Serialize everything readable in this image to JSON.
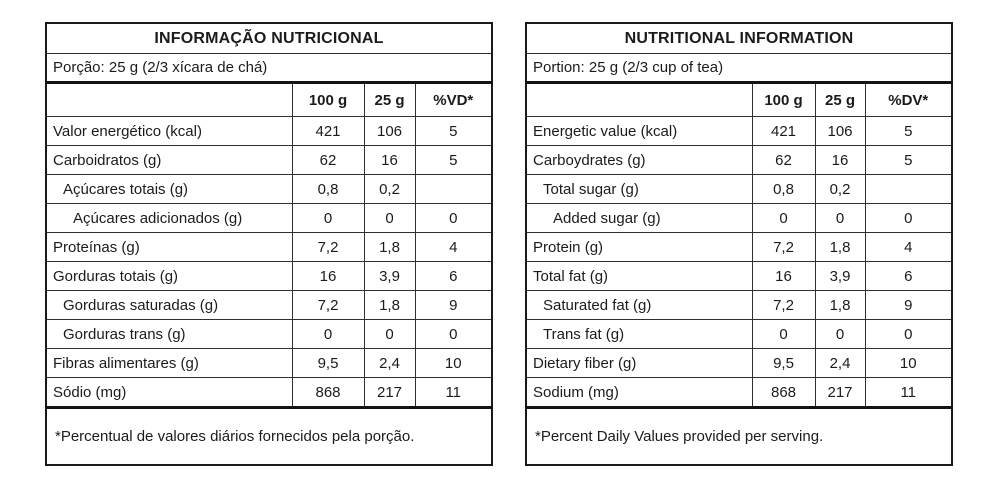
{
  "colors": {
    "background": "#ffffff",
    "border": "#1a1a1a",
    "text": "#1b1b1b"
  },
  "tables": [
    {
      "language": "portuguese",
      "title": "INFORMAÇÃO NUTRICIONAL",
      "portion": "Porção: 25 g (2/3 xícara de chá)",
      "columns": [
        "",
        "100 g",
        "25 g",
        "%VD*"
      ],
      "rows": [
        {
          "label": "Valor energético (kcal)",
          "indent": 0,
          "per100": "421",
          "per25": "106",
          "dv": "5"
        },
        {
          "label": "Carboidratos (g)",
          "indent": 0,
          "per100": "62",
          "per25": "16",
          "dv": "5"
        },
        {
          "label": "Açúcares totais (g)",
          "indent": 1,
          "per100": "0,8",
          "per25": "0,2",
          "dv": ""
        },
        {
          "label": "Açúcares adicionados (g)",
          "indent": 2,
          "per100": "0",
          "per25": "0",
          "dv": "0"
        },
        {
          "label": "Proteínas (g)",
          "indent": 0,
          "per100": "7,2",
          "per25": "1,8",
          "dv": "4"
        },
        {
          "label": "Gorduras totais (g)",
          "indent": 0,
          "per100": "16",
          "per25": "3,9",
          "dv": "6"
        },
        {
          "label": "Gorduras saturadas (g)",
          "indent": 1,
          "per100": "7,2",
          "per25": "1,8",
          "dv": "9"
        },
        {
          "label": "Gorduras trans (g)",
          "indent": 1,
          "per100": "0",
          "per25": "0",
          "dv": "0"
        },
        {
          "label": "Fibras alimentares (g)",
          "indent": 0,
          "per100": "9,5",
          "per25": "2,4",
          "dv": "10"
        },
        {
          "label": "Sódio (mg)",
          "indent": 0,
          "per100": "868",
          "per25": "217",
          "dv": "11"
        }
      ],
      "footnote": "*Percentual de valores diários fornecidos pela porção."
    },
    {
      "language": "english",
      "title": "NUTRITIONAL INFORMATION",
      "portion": "Portion: 25 g (2/3 cup of tea)",
      "columns": [
        "",
        "100 g",
        "25 g",
        "%DV*"
      ],
      "rows": [
        {
          "label": "Energetic value (kcal)",
          "indent": 0,
          "per100": "421",
          "per25": "106",
          "dv": "5"
        },
        {
          "label": "Carboydrates (g)",
          "indent": 0,
          "per100": "62",
          "per25": "16",
          "dv": "5"
        },
        {
          "label": "Total sugar (g)",
          "indent": 1,
          "per100": "0,8",
          "per25": "0,2",
          "dv": ""
        },
        {
          "label": "Added sugar (g)",
          "indent": 2,
          "per100": "0",
          "per25": "0",
          "dv": "0"
        },
        {
          "label": "Protein (g)",
          "indent": 0,
          "per100": "7,2",
          "per25": "1,8",
          "dv": "4"
        },
        {
          "label": "Total fat (g)",
          "indent": 0,
          "per100": "16",
          "per25": "3,9",
          "dv": "6"
        },
        {
          "label": "Saturated fat (g)",
          "indent": 1,
          "per100": "7,2",
          "per25": "1,8",
          "dv": "9"
        },
        {
          "label": "Trans fat (g)",
          "indent": 1,
          "per100": "0",
          "per25": "0",
          "dv": "0"
        },
        {
          "label": "Dietary fiber (g)",
          "indent": 0,
          "per100": "9,5",
          "per25": "2,4",
          "dv": "10"
        },
        {
          "label": "Sodium (mg)",
          "indent": 0,
          "per100": "868",
          "per25": "217",
          "dv": "11"
        }
      ],
      "footnote": "*Percent Daily Values provided per serving."
    }
  ]
}
